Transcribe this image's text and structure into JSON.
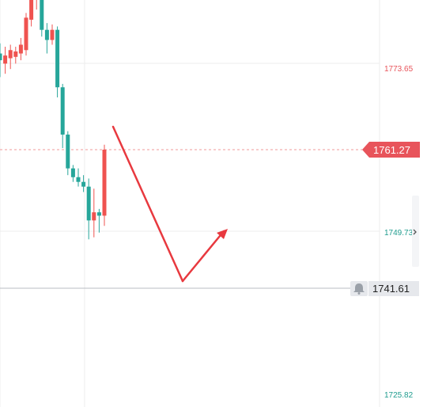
{
  "colors": {
    "up": "#ef5350",
    "down": "#26a69a",
    "grid": "#ececec",
    "current_line": "#f29a9a",
    "alert_line": "#b9bcc3",
    "tag_current_bg": "#e8545b",
    "tag_alert_bg": "#e6e8ec",
    "arrow": "#e8393f",
    "axis_red": "#e8545b",
    "axis_green": "#1f9c8e"
  },
  "chart_data": {
    "type": "candlestick",
    "y_axis": {
      "range": [
        1725.0,
        1785.0
      ],
      "ticks": [
        {
          "value": 1773.65,
          "label": "1773.65",
          "color": "red"
        },
        {
          "value": 1749.73,
          "label": "1749.73",
          "color": "green"
        },
        {
          "value": 1725.82,
          "label": "1725.82",
          "color": "green"
        }
      ]
    },
    "current_price": {
      "value": 1761.27,
      "label": "1761.27"
    },
    "alert": {
      "value": 1741.61,
      "label": "1741.61",
      "icon": "bell-icon"
    },
    "candles": [
      {
        "o": 1775.5,
        "h": 1777.0,
        "c": 1774.5,
        "l": 1772.0
      },
      {
        "o": 1774.0,
        "h": 1776.5,
        "c": 1775.2,
        "l": 1772.5
      },
      {
        "o": 1774.8,
        "h": 1776.8,
        "c": 1776.0,
        "l": 1773.2
      },
      {
        "o": 1775.0,
        "h": 1776.5,
        "c": 1775.8,
        "l": 1774.0
      },
      {
        "o": 1775.5,
        "h": 1777.8,
        "c": 1776.8,
        "l": 1774.5
      },
      {
        "o": 1776.0,
        "h": 1781.5,
        "c": 1780.8,
        "l": 1775.2
      },
      {
        "o": 1780.5,
        "h": 1786.5,
        "c": 1785.5,
        "l": 1779.5
      },
      {
        "o": 1785.0,
        "h": 1787.0,
        "c": 1786.0,
        "l": 1782.0
      },
      {
        "o": 1786.0,
        "h": 1786.5,
        "c": 1779.0,
        "l": 1778.0
      },
      {
        "o": 1779.0,
        "h": 1780.0,
        "c": 1777.5,
        "l": 1775.5
      },
      {
        "o": 1777.5,
        "h": 1779.8,
        "c": 1779.0,
        "l": 1776.8
      },
      {
        "o": 1779.0,
        "h": 1779.5,
        "c": 1770.5,
        "l": 1769.0
      },
      {
        "o": 1770.5,
        "h": 1771.0,
        "c": 1763.5,
        "l": 1761.5
      },
      {
        "o": 1763.5,
        "h": 1764.0,
        "c": 1758.5,
        "l": 1757.5
      },
      {
        "o": 1758.5,
        "h": 1759.0,
        "c": 1757.2,
        "l": 1756.5
      },
      {
        "o": 1757.2,
        "h": 1758.5,
        "c": 1756.5,
        "l": 1755.8
      },
      {
        "o": 1756.5,
        "h": 1757.5,
        "c": 1755.8,
        "l": 1755.0
      },
      {
        "o": 1755.8,
        "h": 1757.0,
        "c": 1750.8,
        "l": 1748.0
      },
      {
        "o": 1750.8,
        "h": 1755.5,
        "c": 1752.0,
        "l": 1748.3
      },
      {
        "o": 1752.0,
        "h": 1752.5,
        "c": 1751.5,
        "l": 1749.0
      },
      {
        "o": 1751.5,
        "h": 1762.0,
        "c": 1761.27,
        "l": 1750.0
      }
    ]
  }
}
